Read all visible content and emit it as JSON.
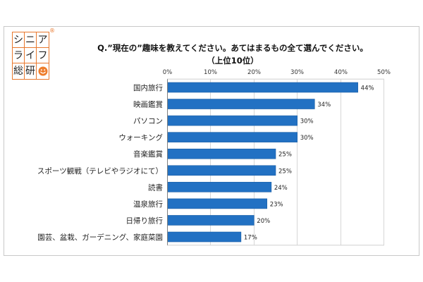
{
  "logo": {
    "rows": [
      [
        "シ",
        "ニ",
        "ア"
      ],
      [
        "ラ",
        "イ",
        "フ"
      ],
      [
        "総",
        "研"
      ]
    ],
    "registered_mark": "®",
    "icon": "smiley-icon",
    "color": "#e8782e"
  },
  "chart_data": {
    "type": "bar",
    "orientation": "horizontal",
    "title": "Q.”現在の”趣味を教えてください。あてはまるもの全て選んでください。",
    "subtitle": "（上位10位）",
    "categories": [
      "国内旅行",
      "映画鑑賞",
      "パソコン",
      "ウォーキング",
      "音楽鑑賞",
      "スポーツ観戦（テレビやラジオにて）",
      "読書",
      "温泉旅行",
      "日帰り旅行",
      "園芸、盆栽、ガーデニング、家庭菜園"
    ],
    "values": [
      44,
      34,
      30,
      30,
      25,
      25,
      24,
      23,
      20,
      17
    ],
    "data_labels": [
      "44%",
      "34%",
      "30%",
      "30%",
      "25%",
      "25%",
      "24%",
      "23%",
      "20%",
      "17%"
    ],
    "x_ticks": [
      0,
      10,
      20,
      30,
      40,
      50
    ],
    "x_tick_labels": [
      "0%",
      "10%",
      "20%",
      "30%",
      "40%",
      "50%"
    ],
    "xlim": [
      0,
      50
    ],
    "x_axis_position": "top",
    "grid": true,
    "legend": "none",
    "bar_color": "#2271c3"
  }
}
